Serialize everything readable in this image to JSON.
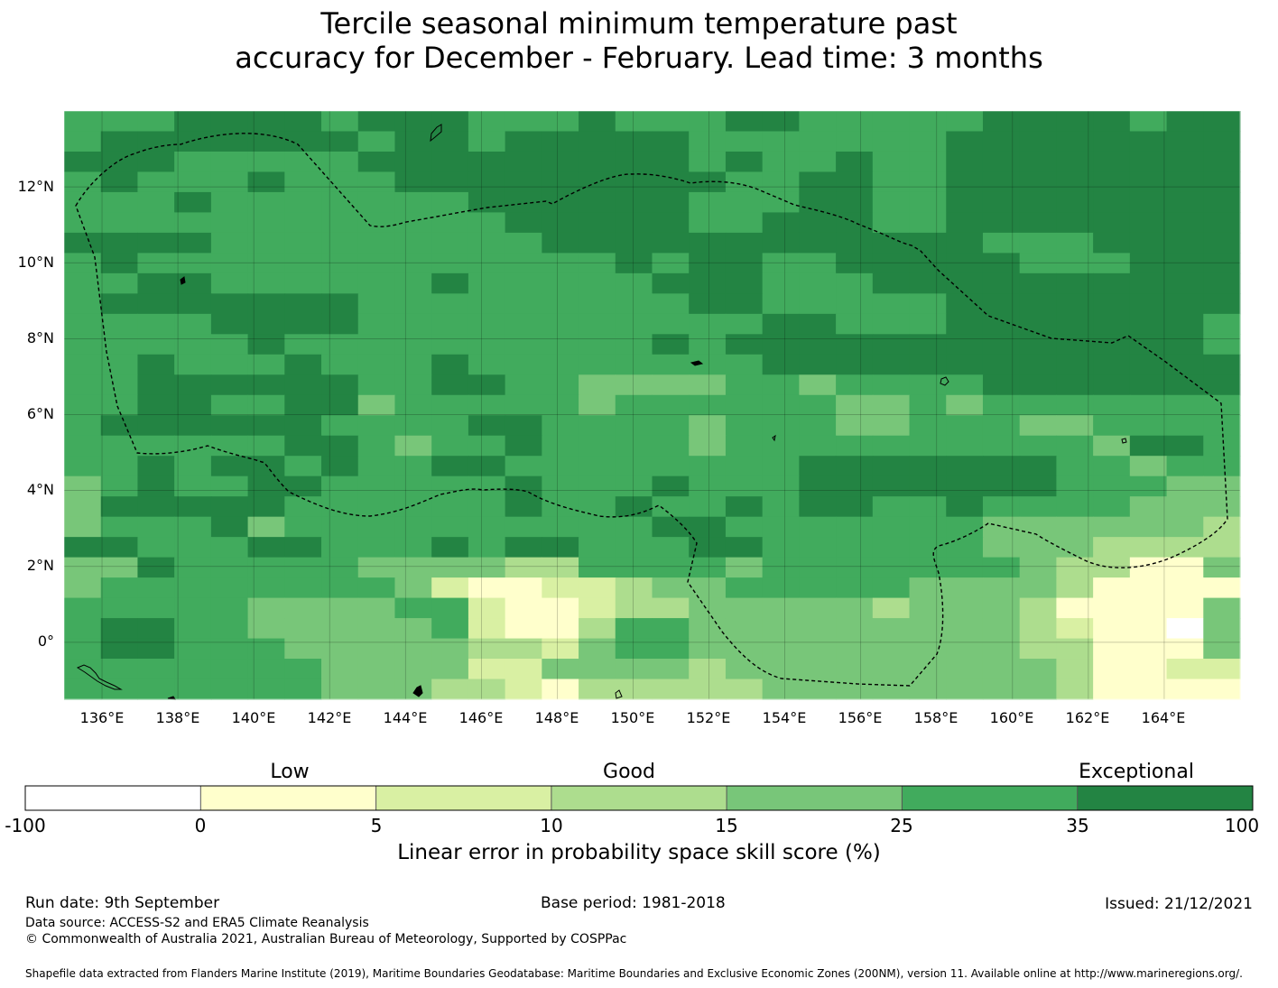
{
  "title": {
    "line1": "Tercile seasonal minimum temperature past",
    "line2": "accuracy for December - February. Lead time: 3 months"
  },
  "map": {
    "lon_range": [
      135,
      166
    ],
    "lat_range": [
      -1.5,
      14
    ],
    "x_ticks": [
      "136°E",
      "138°E",
      "140°E",
      "142°E",
      "144°E",
      "146°E",
      "148°E",
      "150°E",
      "152°E",
      "154°E",
      "156°E",
      "158°E",
      "160°E",
      "162°E",
      "164°E"
    ],
    "y_ticks": [
      "12°N",
      "10°N",
      "8°N",
      "6°N",
      "4°N",
      "2°N",
      "0°"
    ],
    "gridlines": true,
    "boundary_style": "dashed",
    "cell_size_deg": 0.833,
    "colors": {
      "c0": "#ffffff",
      "c1": "#ffffcc",
      "c2": "#d9f0a3",
      "c3": "#addd8e",
      "c4": "#78c679",
      "c5": "#41ab5d",
      "c6": "#238443"
    },
    "grid_rows": [
      "55566665666555655566555556666566",
      "56666666566566666555555566666666",
      "66655555666666666565565566666666",
      "56555655566666666655665566666666",
      "55565555555666666555665566666666",
      "55555555555566666556665566666666",
      "66665555555556666666666665556666",
      "56555555555555565665566666555666",
      "55665555556555556665556666666666",
      "56666666555555555665555566666666",
      "55556666555555555556655566666665",
      "55555655555555556566666666666665",
      "55655565556555555556666666666666",
      "55666666556655444455455556666666",
      "55665566455555455555544545555555",
      "56666665555665555455544555445555",
      "55555566545565555455555555554665",
      "55656656556655555555666666655455",
      "45655665555565556555666666655544",
      "46666655555565565565665565555444",
      "45556455555555556655555554444443",
      "66555665556566555665555554443333",
      "44655555444433555545555555433114",
      "45555555542112234455555444431111",
      "55555444455211233444443444311114",
      "56655444445211355444444444321104",
      "56655544444332455444444444331114",
      "55555554444224444344444444431122",
      "55555554443321333334444444431111"
    ]
  },
  "colorbar": {
    "ticks": [
      "-100",
      "0",
      "5",
      "10",
      "15",
      "25",
      "35",
      "100"
    ],
    "categories": [
      "Low",
      "Good",
      "Exceptional"
    ],
    "label": "Linear error in probability space skill score (%)"
  },
  "footer": {
    "run_date": "Run date: 9th September",
    "base_period": "Base period: 1981-2018",
    "issued": "Issued: 21/12/2021",
    "data_source": "Data source: ACCESS-S2 and ERA5 Climate Reanalysis",
    "copyright": "© Commonwealth of Australia 2021, Australian Bureau of Meteorology, Supported by COSPPac",
    "shapefile": "Shapefile data extracted from Flanders Marine Institute (2019), Maritime Boundaries Geodatabase: Maritime Boundaries and Exclusive Economic Zones (200NM), version 11. Available online at http://www.marineregions.org/."
  }
}
